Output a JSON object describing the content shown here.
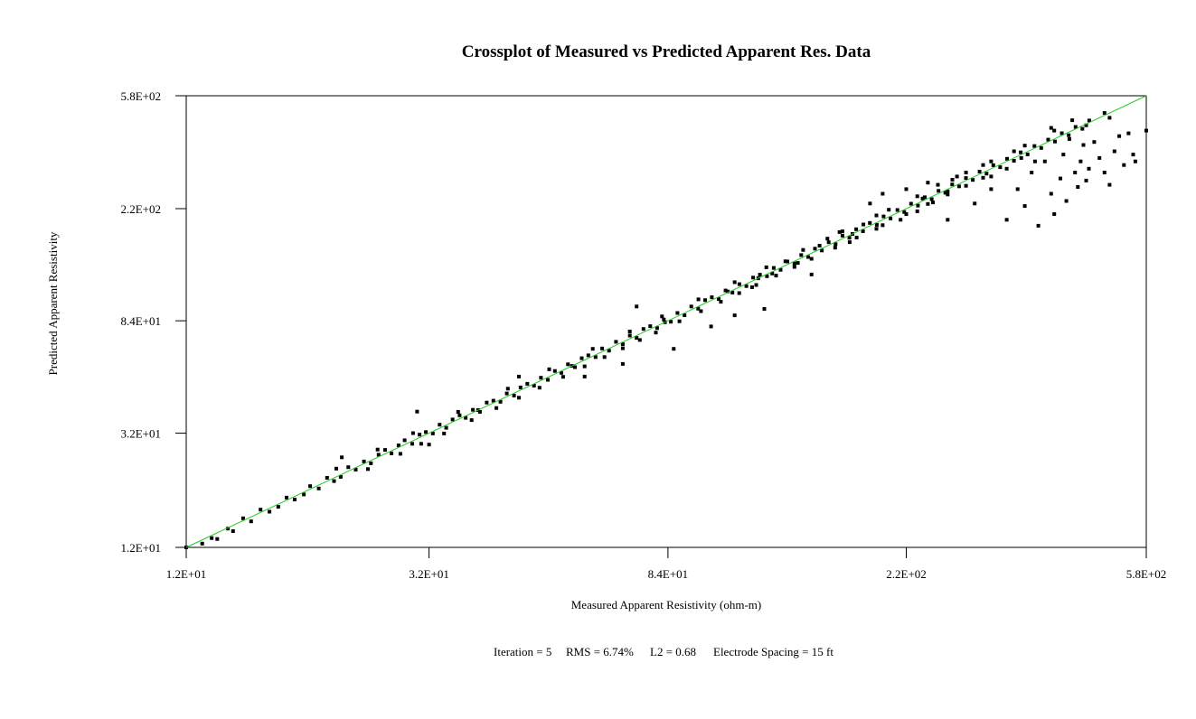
{
  "chart_data": {
    "type": "scatter",
    "title": "Crossplot of Measured vs Predicted Apparent Res. Data",
    "xlabel": "Measured Apparent Resistivity (ohm-m)",
    "ylabel": "Predicted Apparent Resistivity",
    "x_scale": "log",
    "y_scale": "log",
    "xlim": [
      12,
      580
    ],
    "ylim": [
      12,
      580
    ],
    "x_ticks": [
      {
        "value": 12,
        "label": "1.2E+01"
      },
      {
        "value": 32,
        "label": "3.2E+01"
      },
      {
        "value": 84,
        "label": "8.4E+01"
      },
      {
        "value": 220,
        "label": "2.2E+02"
      },
      {
        "value": 580,
        "label": "5.8E+02"
      }
    ],
    "y_ticks": [
      {
        "value": 12,
        "label": "1.2E+01"
      },
      {
        "value": 32,
        "label": "3.2E+01"
      },
      {
        "value": 84,
        "label": "8.4E+01"
      },
      {
        "value": 220,
        "label": "2.2E+02"
      },
      {
        "value": 580,
        "label": "5.8E+02"
      }
    ],
    "grid": false,
    "reference_line": {
      "type": "y=x",
      "color": "#22cc22"
    },
    "marker_color": "#000000",
    "points": [
      [
        12.0,
        12.0
      ],
      [
        12.8,
        12.4
      ],
      [
        13.3,
        13.0
      ],
      [
        13.6,
        12.9
      ],
      [
        14.2,
        14.1
      ],
      [
        14.5,
        13.8
      ],
      [
        15.1,
        15.4
      ],
      [
        15.6,
        15.0
      ],
      [
        16.2,
        16.6
      ],
      [
        16.8,
        16.3
      ],
      [
        17.4,
        17.0
      ],
      [
        18.0,
        18.4
      ],
      [
        18.6,
        18.1
      ],
      [
        19.3,
        18.9
      ],
      [
        19.8,
        20.3
      ],
      [
        20.5,
        19.9
      ],
      [
        21.2,
        21.8
      ],
      [
        21.8,
        21.2
      ],
      [
        22.4,
        22.0
      ],
      [
        23.1,
        23.9
      ],
      [
        23.8,
        23.4
      ],
      [
        24.6,
        25.1
      ],
      [
        25.3,
        24.7
      ],
      [
        26.1,
        26.6
      ],
      [
        26.8,
        27.7
      ],
      [
        27.5,
        26.9
      ],
      [
        28.3,
        28.8
      ],
      [
        29.0,
        30.1
      ],
      [
        29.9,
        29.2
      ],
      [
        30.8,
        31.6
      ],
      [
        31.6,
        32.3
      ],
      [
        32.5,
        31.9
      ],
      [
        33.4,
        34.4
      ],
      [
        34.3,
        33.5
      ],
      [
        35.2,
        36.0
      ],
      [
        36.2,
        37.3
      ],
      [
        37.1,
        36.5
      ],
      [
        38.2,
        39.1
      ],
      [
        39.3,
        38.4
      ],
      [
        40.4,
        41.6
      ],
      [
        41.5,
        42.3
      ],
      [
        42.7,
        41.9
      ],
      [
        43.8,
        45.0
      ],
      [
        45.1,
        44.2
      ],
      [
        46.3,
        47.4
      ],
      [
        47.6,
        48.9
      ],
      [
        48.9,
        48.1
      ],
      [
        50.3,
        51.5
      ],
      [
        51.7,
        50.6
      ],
      [
        53.2,
        54.6
      ],
      [
        54.6,
        53.7
      ],
      [
        56.1,
        57.8
      ],
      [
        57.7,
        56.4
      ],
      [
        59.3,
        60.9
      ],
      [
        60.9,
        62.4
      ],
      [
        62.7,
        61.5
      ],
      [
        64.4,
        66.2
      ],
      [
        66.2,
        65.0
      ],
      [
        68.1,
        70.1
      ],
      [
        70.0,
        68.7
      ],
      [
        72.0,
        74.0
      ],
      [
        74.0,
        72.5
      ],
      [
        76.1,
        78.3
      ],
      [
        78.2,
        80.2
      ],
      [
        80.4,
        78.9
      ],
      [
        82.6,
        84.9
      ],
      [
        85.0,
        83.3
      ],
      [
        87.3,
        89.8
      ],
      [
        89.8,
        88.1
      ],
      [
        92.3,
        95.0
      ],
      [
        94.9,
        93.2
      ],
      [
        97.6,
        100.3
      ],
      [
        100.3,
        102.8
      ],
      [
        103.1,
        101.2
      ],
      [
        106.0,
        108.9
      ],
      [
        109.0,
        107.0
      ],
      [
        112.1,
        115.0
      ],
      [
        115.3,
        113.2
      ],
      [
        118.5,
        121.7
      ],
      [
        121.8,
        124.8
      ],
      [
        125.3,
        123.1
      ],
      [
        128.8,
        132.2
      ],
      [
        132.4,
        130.1
      ],
      [
        136.1,
        139.7
      ],
      [
        140.0,
        137.5
      ],
      [
        143.9,
        147.6
      ],
      [
        148.0,
        145.3
      ],
      [
        152.1,
        156.0
      ],
      [
        156.4,
        153.6
      ],
      [
        160.8,
        165.0
      ],
      [
        165.3,
        162.2
      ],
      [
        170.0,
        174.4
      ],
      [
        174.8,
        171.4
      ],
      [
        179.7,
        184.3
      ],
      [
        184.7,
        181.2
      ],
      [
        189.9,
        194.6
      ],
      [
        195.3,
        191.4
      ],
      [
        200.7,
        205.8
      ],
      [
        206.4,
        202.3
      ],
      [
        212.2,
        217.5
      ],
      [
        218.2,
        213.7
      ],
      [
        224.3,
        229.6
      ],
      [
        230.6,
        225.9
      ],
      [
        237.1,
        242.6
      ],
      [
        243.7,
        238.6
      ],
      [
        250.6,
        256.3
      ],
      [
        257.6,
        252.2
      ],
      [
        264.8,
        270.7
      ],
      [
        272.3,
        266.4
      ],
      [
        279.9,
        286.2
      ],
      [
        287.8,
        281.4
      ],
      [
        295.8,
        302.3
      ],
      [
        304.2,
        297.3
      ],
      [
        312.7,
        319.4
      ],
      [
        321.5,
        314.1
      ],
      [
        330.5,
        337.4
      ],
      [
        339.8,
        331.8
      ],
      [
        349.3,
        356.5
      ],
      [
        359.1,
        350.6
      ],
      [
        369.2,
        376.6
      ],
      [
        379.5,
        370.4
      ],
      [
        390.2,
        397.9
      ],
      [
        401.1,
        391.3
      ],
      [
        412.4,
        420.3
      ],
      [
        424.0,
        413.4
      ],
      [
        435.9,
        444.0
      ],
      [
        448.1,
        436.8
      ],
      [
        460.7,
        469.0
      ],
      [
        25.0,
        23.5
      ],
      [
        28.5,
        26.8
      ],
      [
        31.0,
        29.2
      ],
      [
        34.0,
        31.9
      ],
      [
        38.0,
        35.8
      ],
      [
        42.0,
        39.7
      ],
      [
        46.0,
        43.4
      ],
      [
        50.0,
        47.3
      ],
      [
        55.0,
        51.9
      ],
      [
        60.0,
        56.8
      ],
      [
        65.0,
        61.5
      ],
      [
        70.0,
        66.3
      ],
      [
        75.0,
        71.2
      ],
      [
        80.0,
        75.9
      ],
      [
        88.0,
        83.6
      ],
      [
        96.0,
        91.2
      ],
      [
        104.0,
        98.9
      ],
      [
        112.0,
        106.5
      ],
      [
        120.0,
        114.2
      ],
      [
        130.0,
        123.8
      ],
      [
        140.0,
        133.4
      ],
      [
        150.0,
        143.0
      ],
      [
        165.0,
        157.3
      ],
      [
        180.0,
        171.6
      ],
      [
        200.0,
        190.8
      ],
      [
        220.0,
        210.0
      ],
      [
        240.0,
        229.1
      ],
      [
        260.0,
        248.4
      ],
      [
        280.0,
        267.6
      ],
      [
        300.0,
        286.8
      ],
      [
        22.0,
        23.6
      ],
      [
        26.0,
        27.8
      ],
      [
        30.0,
        32.0
      ],
      [
        36.0,
        38.4
      ],
      [
        44.0,
        46.9
      ],
      [
        52.0,
        55.4
      ],
      [
        62.0,
        66.0
      ],
      [
        72.0,
        76.6
      ],
      [
        82.0,
        87.2
      ],
      [
        95.0,
        101.0
      ],
      [
        110.0,
        117.0
      ],
      [
        125.0,
        133.0
      ],
      [
        145.0,
        154.3
      ],
      [
        170.0,
        181.0
      ],
      [
        195.0,
        207.5
      ],
      [
        230.0,
        244.7
      ],
      [
        265.0,
        282.0
      ],
      [
        310.0,
        330.0
      ],
      [
        355.0,
        378.0
      ],
      [
        39.0,
        39.0
      ],
      [
        57.0,
        57.0
      ],
      [
        83.0,
        83.0
      ],
      [
        121.0,
        121.0
      ],
      [
        177.0,
        177.0
      ],
      [
        74.0,
        95.0
      ],
      [
        100.0,
        80.0
      ],
      [
        70.0,
        58.0
      ],
      [
        86.0,
        66.0
      ],
      [
        60.0,
        52.0
      ],
      [
        124.0,
        93.0
      ],
      [
        150.0,
        125.0
      ],
      [
        22.5,
        26.0
      ],
      [
        30.5,
        38.5
      ],
      [
        32.0,
        29.0
      ],
      [
        46.0,
        52.0
      ],
      [
        110.0,
        88.0
      ],
      [
        160.0,
        170.0
      ],
      [
        190.0,
        230.0
      ],
      [
        200.0,
        250.0
      ],
      [
        220.0,
        260.0
      ],
      [
        240.0,
        275.0
      ],
      [
        260.0,
        200.0
      ],
      [
        290.0,
        230.0
      ],
      [
        310.0,
        260.0
      ],
      [
        330.0,
        200.0
      ],
      [
        345.0,
        260.0
      ],
      [
        355.0,
        225.0
      ],
      [
        365.0,
        300.0
      ],
      [
        375.0,
        190.0
      ],
      [
        385.0,
        330.0
      ],
      [
        395.0,
        250.0
      ],
      [
        400.0,
        210.0
      ],
      [
        410.0,
        285.0
      ],
      [
        415.0,
        350.0
      ],
      [
        420.0,
        235.0
      ],
      [
        425.0,
        400.0
      ],
      [
        435.0,
        300.0
      ],
      [
        440.0,
        265.0
      ],
      [
        445.0,
        330.0
      ],
      [
        450.0,
        380.0
      ],
      [
        455.0,
        280.0
      ],
      [
        460.0,
        310.0
      ],
      [
        470.0,
        390.0
      ],
      [
        480.0,
        340.0
      ],
      [
        490.0,
        300.0
      ],
      [
        500.0,
        270.0
      ],
      [
        510.0,
        360.0
      ],
      [
        520.0,
        410.0
      ],
      [
        530.0,
        320.0
      ],
      [
        540.0,
        420.0
      ],
      [
        550.0,
        350.0
      ],
      [
        555.0,
        330.0
      ],
      [
        580.0,
        430.0
      ],
      [
        350.0,
        340.0
      ],
      [
        395.0,
        440.0
      ],
      [
        455.0,
        450.0
      ],
      [
        500.0,
        480.0
      ],
      [
        490.0,
        500.0
      ],
      [
        430.0,
        470.0
      ],
      [
        400.0,
        430.0
      ],
      [
        370.0,
        330.0
      ],
      [
        340.0,
        360.0
      ],
      [
        300.0,
        320.0
      ],
      [
        270.0,
        290.0
      ],
      [
        250.0,
        270.0
      ],
      [
        235.0,
        240.0
      ],
      [
        330.0,
        310.0
      ],
      [
        310.0,
        290.0
      ],
      [
        280.0,
        300.0
      ],
      [
        260.0,
        255.0
      ],
      [
        245.0,
        232.0
      ],
      [
        230.0,
        215.0
      ],
      [
        215.0,
        200.0
      ],
      [
        205.0,
        218.0
      ],
      [
        195.0,
        185.0
      ],
      [
        185.0,
        192.0
      ],
      [
        175.0,
        165.0
      ],
      [
        168.0,
        180.0
      ],
      [
        155.0,
        160.0
      ],
      [
        142.0,
        138.0
      ],
      [
        135.0,
        140.0
      ],
      [
        128.0,
        126.0
      ],
      [
        118.0,
        112.0
      ],
      [
        107.0,
        108.0
      ]
    ]
  },
  "footer": {
    "iteration": "Iteration = 5",
    "rms": "RMS = 6.74%",
    "l2": "L2 = 0.68",
    "spacing": "Electrode Spacing = 15 ft"
  }
}
